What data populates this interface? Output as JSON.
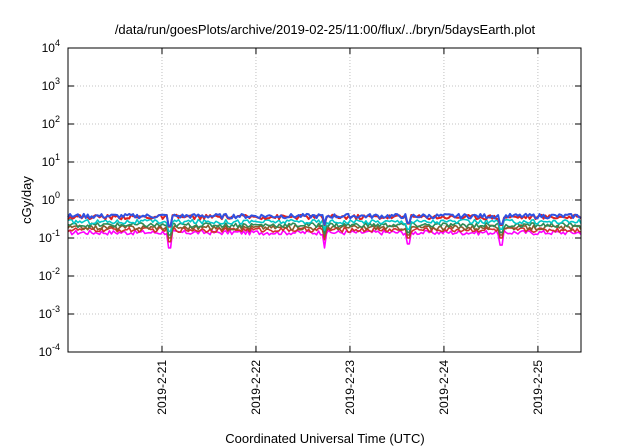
{
  "chart_data": {
    "type": "line",
    "title": "/data/run/goesPlots/archive/2019-02-25/11:00/flux/../bryn/5daysEarth.plot",
    "xlabel": "Coordinated Universal Time (UTC)",
    "ylabel": "cGy/day",
    "y_scale": "log",
    "ylim": [
      0.0001,
      10000
    ],
    "y_ticks": [
      {
        "value": 0.0001,
        "base": "10",
        "exp": "-4"
      },
      {
        "value": 0.001,
        "base": "10",
        "exp": "-3"
      },
      {
        "value": 0.01,
        "base": "10",
        "exp": "-2"
      },
      {
        "value": 0.1,
        "base": "10",
        "exp": "-1"
      },
      {
        "value": 1,
        "base": "10",
        "exp": "0"
      },
      {
        "value": 10,
        "base": "10",
        "exp": "1"
      },
      {
        "value": 100,
        "base": "10",
        "exp": "2"
      },
      {
        "value": 1000,
        "base": "10",
        "exp": "3"
      },
      {
        "value": 10000,
        "base": "10",
        "exp": "4"
      }
    ],
    "x_range": [
      "2019-02-20 00:00",
      "2019-02-25 11:00"
    ],
    "x_ticks": [
      {
        "label": "2019-2-21",
        "value": "2019-02-21 00:00"
      },
      {
        "label": "2019-2-22",
        "value": "2019-02-22 00:00"
      },
      {
        "label": "2019-2-23",
        "value": "2019-02-23 00:00"
      },
      {
        "label": "2019-2-24",
        "value": "2019-02-24 00:00"
      },
      {
        "label": "2019-2-25",
        "value": "2019-02-25 00:00"
      }
    ],
    "grid": true,
    "series": [
      {
        "color": "#ff00ff",
        "level": 0.14,
        "dips": [
          {
            "at": "2019-02-21 02:00",
            "value": 0.055
          },
          {
            "at": "2019-02-22 17:30",
            "value": 0.055
          },
          {
            "at": "2019-02-23 15:00",
            "value": 0.07
          },
          {
            "at": "2019-02-24 14:30",
            "value": 0.065
          }
        ]
      },
      {
        "color": "#d62e2e",
        "level": 0.165,
        "dips": [
          {
            "at": "2019-02-21 02:00",
            "value": 0.08
          },
          {
            "at": "2019-02-22 17:30",
            "value": 0.09
          },
          {
            "at": "2019-02-23 15:00",
            "value": 0.1
          },
          {
            "at": "2019-02-24 14:30",
            "value": 0.1
          }
        ]
      },
      {
        "color": "#8b5a2b",
        "level": 0.19,
        "dips": [
          {
            "at": "2019-02-21 02:00",
            "value": 0.1
          },
          {
            "at": "2019-02-22 17:30",
            "value": 0.11
          },
          {
            "at": "2019-02-23 15:00",
            "value": 0.12
          },
          {
            "at": "2019-02-24 14:30",
            "value": 0.12
          }
        ]
      },
      {
        "color": "#2e8b57",
        "level": 0.22,
        "dips": [
          {
            "at": "2019-02-21 02:00",
            "value": 0.12
          },
          {
            "at": "2019-02-22 17:30",
            "value": 0.13
          },
          {
            "at": "2019-02-23 15:00",
            "value": 0.14
          },
          {
            "at": "2019-02-24 14:30",
            "value": 0.14
          }
        ]
      },
      {
        "color": "#00c8c8",
        "level": 0.27,
        "dips": [
          {
            "at": "2019-02-21 02:00",
            "value": 0.15
          },
          {
            "at": "2019-02-22 17:30",
            "value": 0.16
          },
          {
            "at": "2019-02-23 15:00",
            "value": 0.17
          },
          {
            "at": "2019-02-24 14:30",
            "value": 0.17
          }
        ]
      },
      {
        "color": "#e0201c",
        "level": 0.36,
        "dips": [
          {
            "at": "2019-02-21 02:00",
            "value": 0.2
          },
          {
            "at": "2019-02-22 17:30",
            "value": 0.22
          },
          {
            "at": "2019-02-23 15:00",
            "value": 0.24
          },
          {
            "at": "2019-02-24 14:30",
            "value": 0.22
          }
        ]
      },
      {
        "color": "#3050e0",
        "level": 0.38,
        "dips": [
          {
            "at": "2019-02-21 02:00",
            "value": 0.21
          },
          {
            "at": "2019-02-22 17:30",
            "value": 0.23
          },
          {
            "at": "2019-02-23 15:00",
            "value": 0.25
          },
          {
            "at": "2019-02-24 14:30",
            "value": 0.23
          }
        ]
      }
    ]
  }
}
